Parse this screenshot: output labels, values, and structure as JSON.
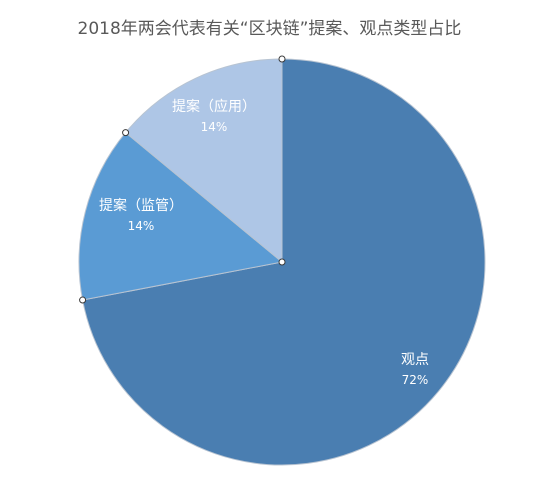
{
  "chart_data": {
    "type": "pie",
    "title": "2018年两会代表有关“区块链”提案、观点类型占比",
    "slices": [
      {
        "name": "观点",
        "value": 72,
        "percent_label": "72%",
        "color": "#4a7eb1"
      },
      {
        "name": "提案（监管）",
        "value": 14,
        "percent_label": "14%",
        "color": "#5a9bd4"
      },
      {
        "name": "提案（应用）",
        "value": 14,
        "percent_label": "14%",
        "color": "#aec6e6"
      }
    ]
  }
}
